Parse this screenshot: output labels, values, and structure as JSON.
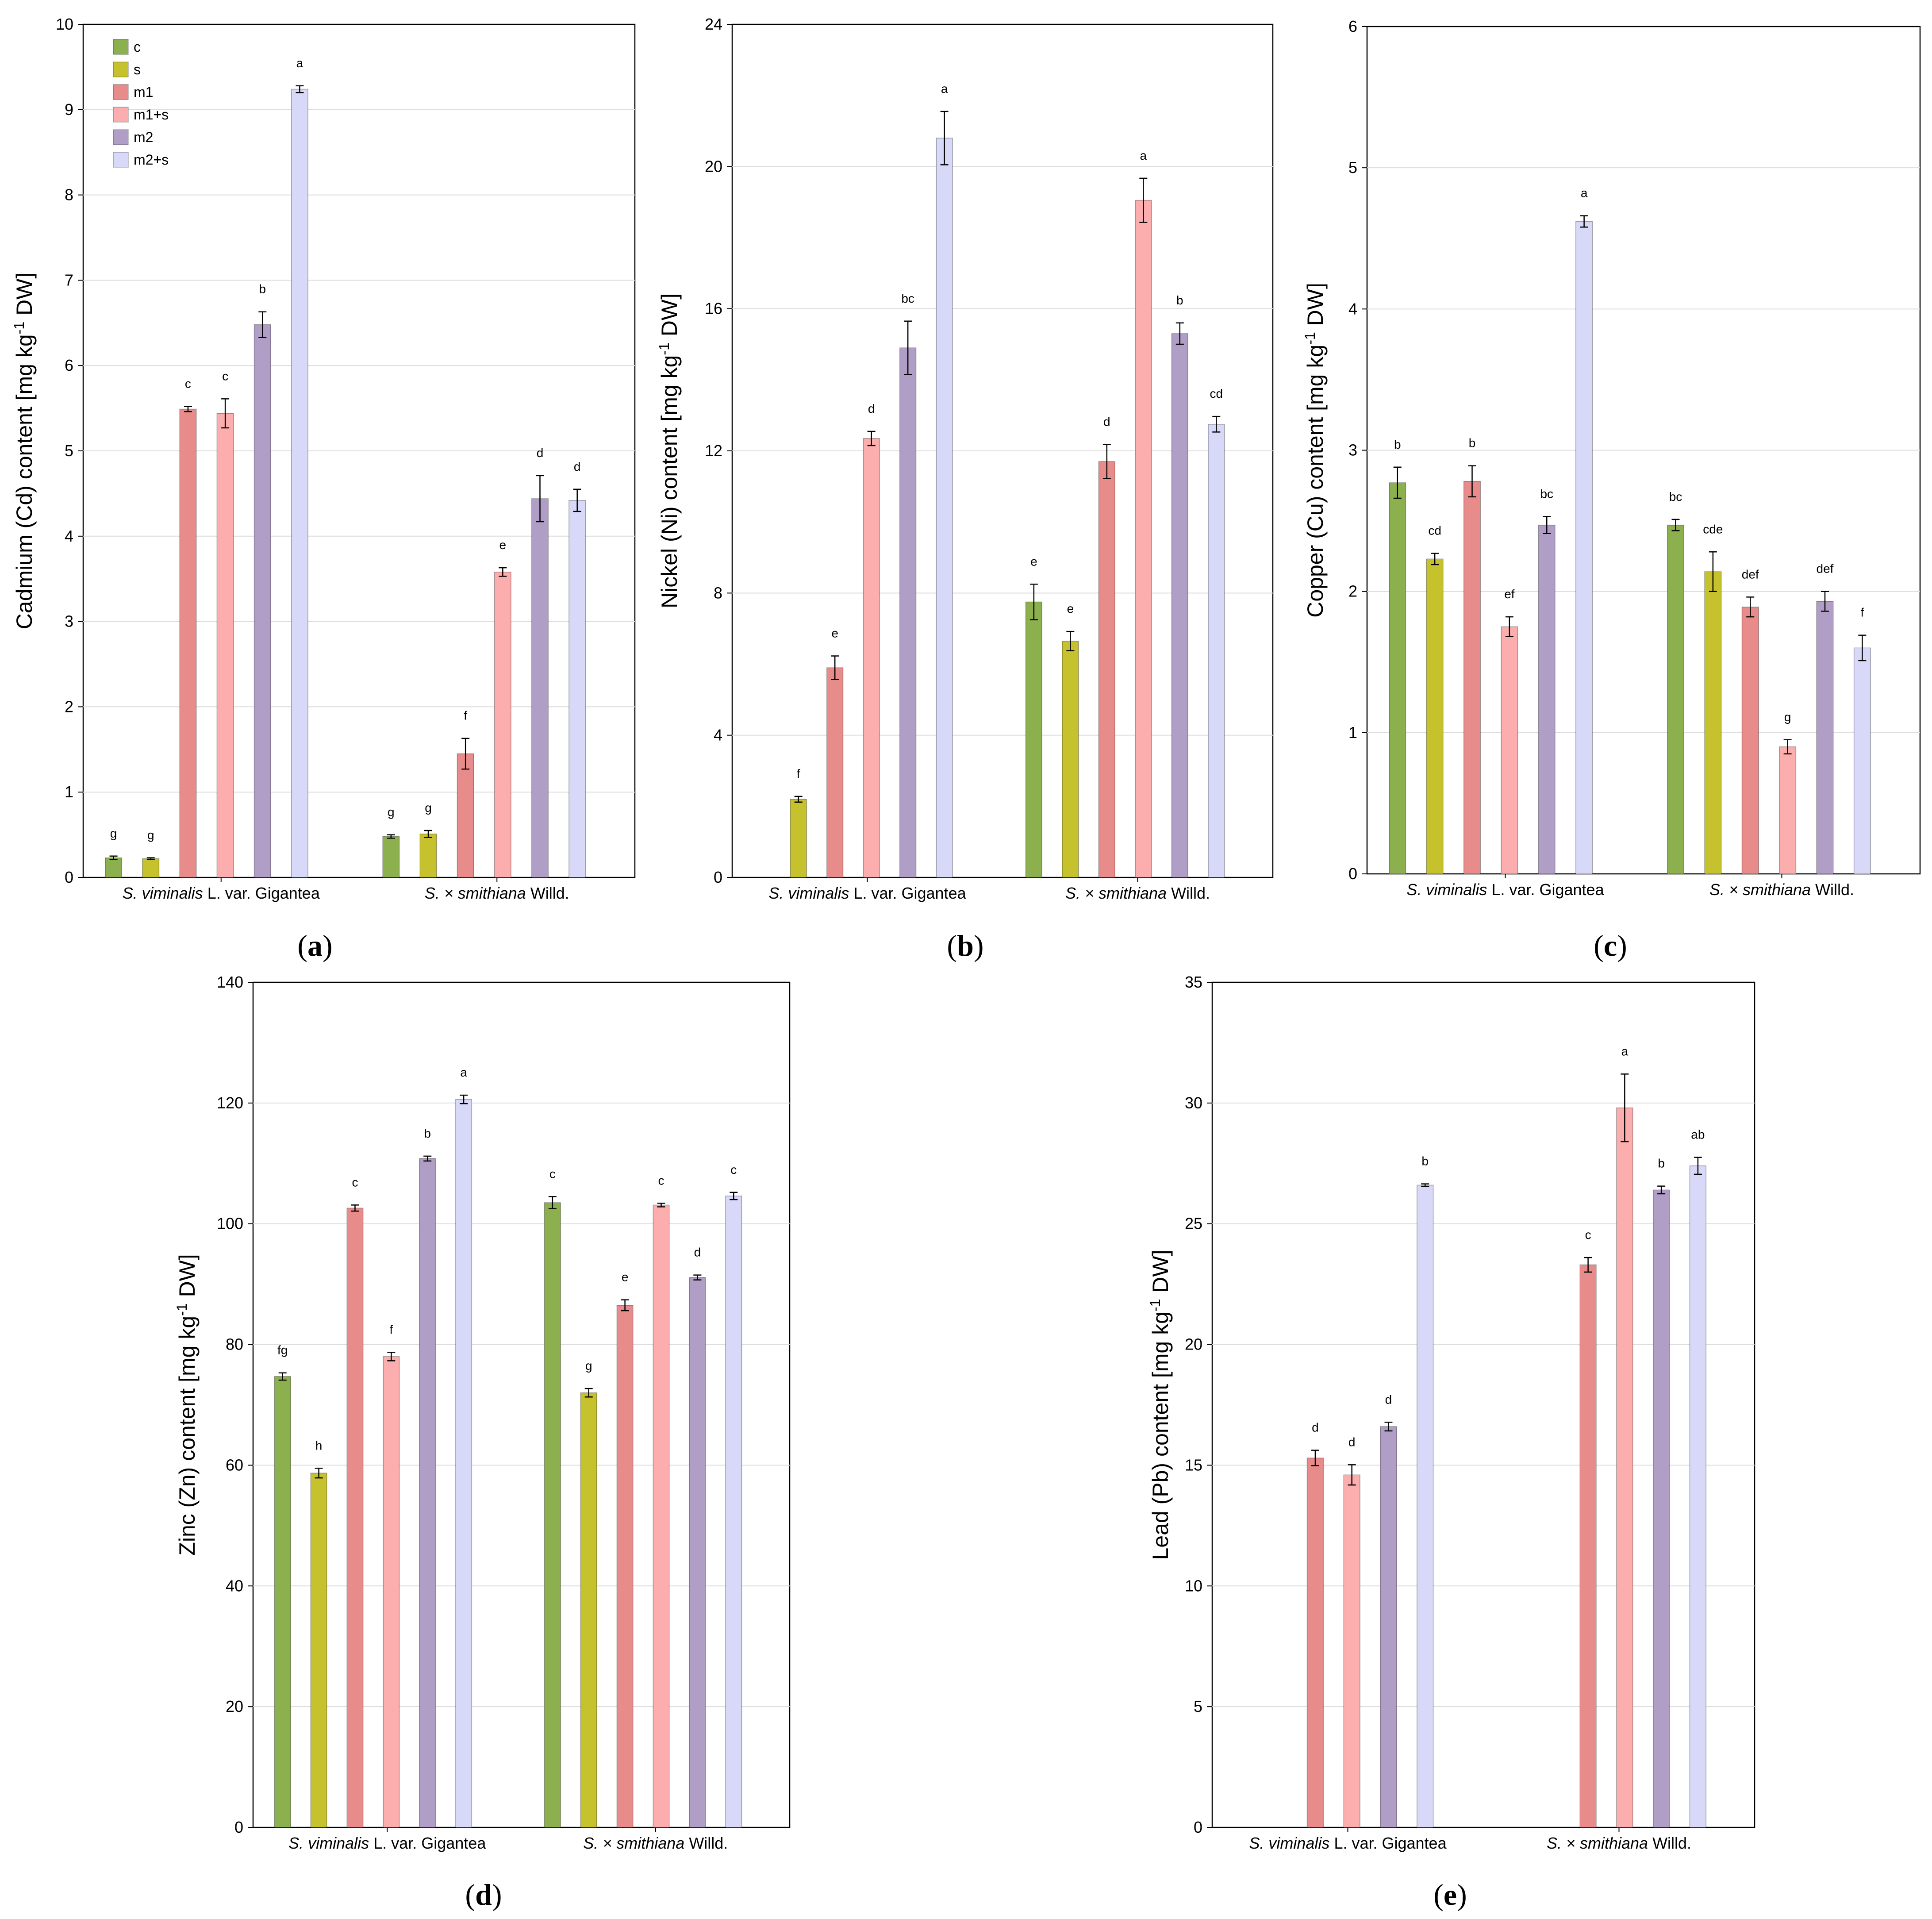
{
  "legend": [
    {
      "key": "c",
      "label": "c",
      "color": "#8db04f"
    },
    {
      "key": "s",
      "label": "s",
      "color": "#c6c22e"
    },
    {
      "key": "m1",
      "label": "m1",
      "color": "#e88b8b"
    },
    {
      "key": "m1s",
      "label": "m1+s",
      "color": "#fcadad"
    },
    {
      "key": "m2",
      "label": "m2",
      "color": "#b19ec7"
    },
    {
      "key": "m2s",
      "label": "m2+s",
      "color": "#d8d8f8"
    }
  ],
  "groups": [
    {
      "italic": "S. viminalis",
      "rest": " L. var. Gigantea"
    },
    {
      "italic": "S. × smithiana",
      "rest": " Willd."
    }
  ],
  "chart_data": [
    {
      "type": "bar",
      "panel": "(a)",
      "ylabel_pre": "Cadmium (Cd) content [mg kg",
      "ylabel_sup": "-1",
      "ylabel_post": " DW]",
      "ylim": [
        0,
        10
      ],
      "yticks": [
        0,
        1,
        2,
        3,
        4,
        5,
        6,
        7,
        8,
        9,
        10
      ],
      "show_legend": true,
      "series": [
        {
          "key": "c",
          "values": [
            0.23,
            0.48
          ],
          "errors": [
            0.02,
            0.02
          ],
          "letters": [
            "g",
            "g"
          ]
        },
        {
          "key": "s",
          "values": [
            0.22,
            0.51
          ],
          "errors": [
            0.01,
            0.04
          ],
          "letters": [
            "g",
            "g"
          ]
        },
        {
          "key": "m1",
          "values": [
            5.49,
            1.45
          ],
          "errors": [
            0.03,
            0.18
          ],
          "letters": [
            "c",
            "f"
          ]
        },
        {
          "key": "m1s",
          "values": [
            5.44,
            3.58
          ],
          "errors": [
            0.17,
            0.05
          ],
          "letters": [
            "c",
            "e"
          ]
        },
        {
          "key": "m2",
          "values": [
            6.48,
            4.44
          ],
          "errors": [
            0.15,
            0.27
          ],
          "letters": [
            "b",
            "d"
          ]
        },
        {
          "key": "m2s",
          "values": [
            9.24,
            4.42
          ],
          "errors": [
            0.04,
            0.13
          ],
          "letters": [
            "a",
            "d"
          ]
        }
      ]
    },
    {
      "type": "bar",
      "panel": "(b)",
      "ylabel_pre": "Nickel (Ni) content [mg kg",
      "ylabel_sup": "-1",
      "ylabel_post": " DW]",
      "ylim": [
        0,
        24
      ],
      "yticks": [
        0,
        4,
        8,
        12,
        16,
        20,
        24
      ],
      "show_legend": false,
      "series": [
        {
          "key": "c",
          "values": [
            null,
            7.75
          ],
          "errors": [
            null,
            0.5
          ],
          "letters": [
            "",
            "e"
          ]
        },
        {
          "key": "s",
          "values": [
            2.2,
            6.65
          ],
          "errors": [
            0.08,
            0.27
          ],
          "letters": [
            "f",
            "e"
          ]
        },
        {
          "key": "m1",
          "values": [
            5.9,
            11.7
          ],
          "errors": [
            0.33,
            0.48
          ],
          "letters": [
            "e",
            "d"
          ]
        },
        {
          "key": "m1s",
          "values": [
            12.35,
            19.05
          ],
          "errors": [
            0.2,
            0.62
          ],
          "letters": [
            "d",
            "a"
          ]
        },
        {
          "key": "m2",
          "values": [
            14.9,
            15.3
          ],
          "errors": [
            0.75,
            0.3
          ],
          "letters": [
            "bc",
            "b"
          ]
        },
        {
          "key": "m2s",
          "values": [
            20.8,
            12.75
          ],
          "errors": [
            0.75,
            0.22
          ],
          "letters": [
            "a",
            "cd"
          ]
        }
      ]
    },
    {
      "type": "bar",
      "panel": "(c)",
      "ylabel_pre": "Copper (Cu) content [mg kg",
      "ylabel_sup": "-1",
      "ylabel_post": " DW]",
      "ylim": [
        0,
        6
      ],
      "yticks": [
        0,
        1,
        2,
        3,
        4,
        5,
        6
      ],
      "show_legend": false,
      "series": [
        {
          "key": "c",
          "values": [
            2.77,
            2.47
          ],
          "errors": [
            0.11,
            0.04
          ],
          "letters": [
            "b",
            "bc"
          ]
        },
        {
          "key": "s",
          "values": [
            2.23,
            2.14
          ],
          "errors": [
            0.04,
            0.14
          ],
          "letters": [
            "cd",
            "cde"
          ]
        },
        {
          "key": "m1",
          "values": [
            2.78,
            1.89
          ],
          "errors": [
            0.11,
            0.07
          ],
          "letters": [
            "b",
            "def"
          ]
        },
        {
          "key": "m1s",
          "values": [
            1.75,
            0.9
          ],
          "errors": [
            0.07,
            0.05
          ],
          "letters": [
            "ef",
            "g"
          ]
        },
        {
          "key": "m2",
          "values": [
            2.47,
            1.93
          ],
          "errors": [
            0.06,
            0.07
          ],
          "letters": [
            "bc",
            "def"
          ]
        },
        {
          "key": "m2s",
          "values": [
            4.62,
            1.6
          ],
          "errors": [
            0.04,
            0.09
          ],
          "letters": [
            "a",
            "f"
          ]
        }
      ]
    },
    {
      "type": "bar",
      "panel": "(d)",
      "ylabel_pre": "Zinc (Zn) content [mg kg",
      "ylabel_sup": "-1",
      "ylabel_post": " DW]",
      "ylim": [
        0,
        140
      ],
      "yticks": [
        0,
        20,
        40,
        60,
        80,
        100,
        120,
        140
      ],
      "show_legend": false,
      "series": [
        {
          "key": "c",
          "values": [
            74.7,
            103.5
          ],
          "errors": [
            0.6,
            1.0
          ],
          "letters": [
            "fg",
            "c"
          ]
        },
        {
          "key": "s",
          "values": [
            58.7,
            72.0
          ],
          "errors": [
            0.8,
            0.7
          ],
          "letters": [
            "h",
            "g"
          ]
        },
        {
          "key": "m1",
          "values": [
            102.6,
            86.5
          ],
          "errors": [
            0.5,
            0.9
          ],
          "letters": [
            "c",
            "e"
          ]
        },
        {
          "key": "m1s",
          "values": [
            78.0,
            103.1
          ],
          "errors": [
            0.7,
            0.3
          ],
          "letters": [
            "f",
            "c"
          ]
        },
        {
          "key": "m2",
          "values": [
            110.8,
            91.1
          ],
          "errors": [
            0.4,
            0.4
          ],
          "letters": [
            "b",
            "d"
          ]
        },
        {
          "key": "m2s",
          "values": [
            120.6,
            104.6
          ],
          "errors": [
            0.7,
            0.6
          ],
          "letters": [
            "a",
            "c"
          ]
        }
      ]
    },
    {
      "type": "bar",
      "panel": "(e)",
      "ylabel_pre": "Lead (Pb) content [mg kg",
      "ylabel_sup": "-1",
      "ylabel_post": " DW]",
      "ylim": [
        0,
        35
      ],
      "yticks": [
        0,
        5,
        10,
        15,
        20,
        25,
        30,
        35
      ],
      "show_legend": false,
      "series": [
        {
          "key": "c",
          "values": [
            null,
            null
          ],
          "errors": [
            null,
            null
          ],
          "letters": [
            "",
            ""
          ]
        },
        {
          "key": "s",
          "values": [
            null,
            null
          ],
          "errors": [
            null,
            null
          ],
          "letters": [
            "",
            ""
          ]
        },
        {
          "key": "m1",
          "values": [
            15.3,
            23.3
          ],
          "errors": [
            0.32,
            0.3
          ],
          "letters": [
            "d",
            "c"
          ]
        },
        {
          "key": "m1s",
          "values": [
            14.6,
            29.8
          ],
          "errors": [
            0.42,
            1.4
          ],
          "letters": [
            "d",
            "a"
          ]
        },
        {
          "key": "m2",
          "values": [
            16.6,
            26.4
          ],
          "errors": [
            0.18,
            0.16
          ],
          "letters": [
            "d",
            "b"
          ]
        },
        {
          "key": "m2s",
          "values": [
            26.6,
            27.4
          ],
          "errors": [
            0.05,
            0.35
          ],
          "letters": [
            "b",
            "ab"
          ]
        }
      ]
    }
  ]
}
